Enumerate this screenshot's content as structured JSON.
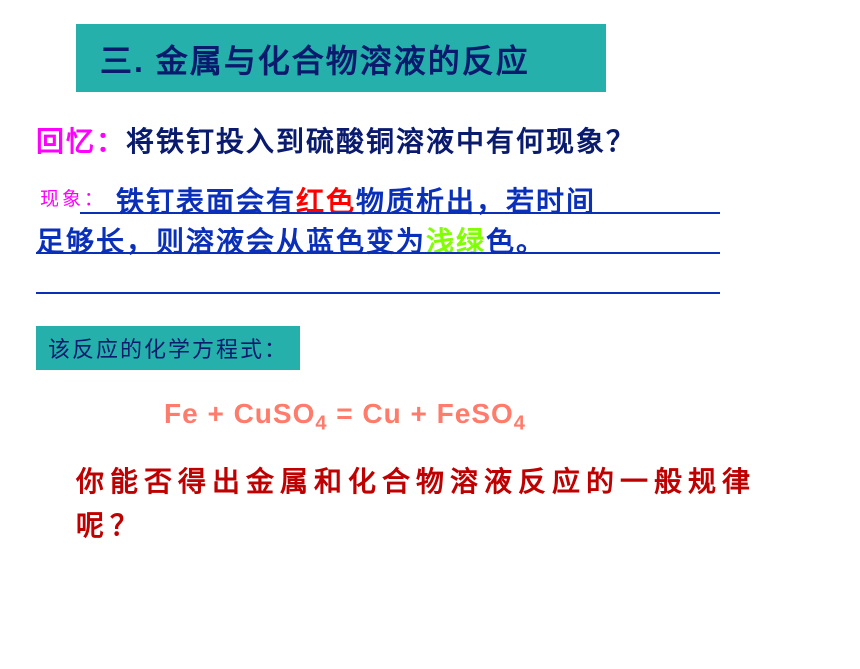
{
  "title": "三. 金属与化合物溶液的反应",
  "recall": {
    "label": "回忆：",
    "body": "将铁钉投入到硫酸铜溶液中有何现象？"
  },
  "phenomenon": {
    "label": "现象：",
    "part1": "铁钉表面会有",
    "redWord": "红色",
    "part2": "物质析出，若时间",
    "part3": "足够长，则溶液会从蓝色变为",
    "greenWord": "浅绿",
    "part4": "色。"
  },
  "equationLabel": "该反应的化学方程式：",
  "equation": {
    "text1": "Fe  +  CuSO",
    "sub1": "4",
    "text2": "  =  Cu  +  FeSO",
    "sub2": "4"
  },
  "question": "你能否得出金属和化合物溶液反应的一般规律呢？",
  "colors": {
    "tealBox": "#26b0ac",
    "darkNavy": "#0a1b6e",
    "magenta": "#ff00ff",
    "blue": "#0a2fb8",
    "red": "#ff0000",
    "lightGreen": "#7fff00",
    "salmon": "#ff7b6b",
    "darkRed": "#bf0000"
  }
}
